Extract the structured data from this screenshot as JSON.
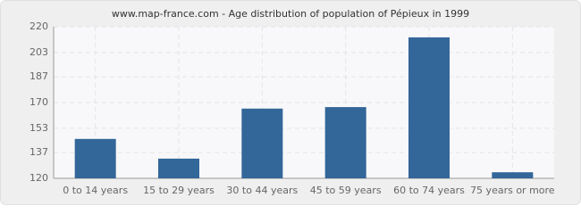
{
  "chart_data": {
    "type": "bar",
    "title": "www.map-france.com - Age distribution of population of Pépieux in 1999",
    "categories": [
      "0 to 14 years",
      "15 to 29 years",
      "30 to 44 years",
      "45 to 59 years",
      "60 to 74 years",
      "75 years or more"
    ],
    "values": [
      146,
      133,
      166,
      167,
      213,
      124
    ],
    "color": "#336699",
    "ylim": [
      120,
      220
    ],
    "yticks": [
      120,
      137,
      153,
      170,
      187,
      203,
      220
    ],
    "grid": true
  }
}
